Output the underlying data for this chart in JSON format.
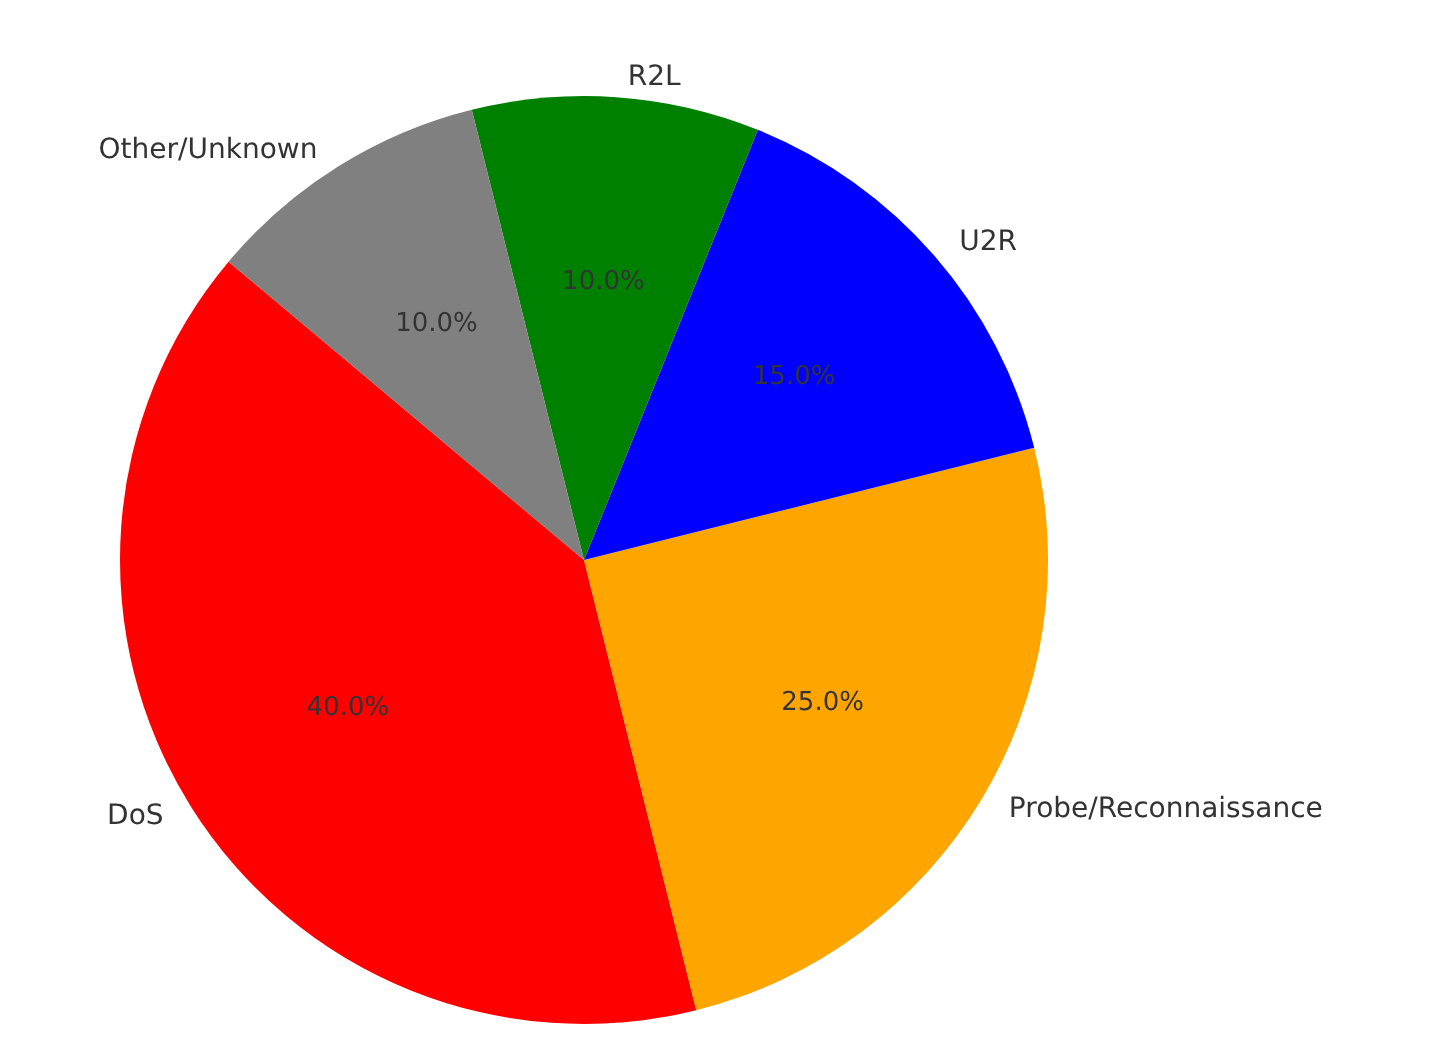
{
  "chart_data": {
    "type": "pie",
    "categories": [
      "DoS",
      "Probe/Reconnaissance",
      "U2R",
      "R2L",
      "Other/Unknown"
    ],
    "values": [
      40,
      25,
      15,
      10,
      10
    ],
    "colors": [
      "#ff0000",
      "#ffa500",
      "#0000ff",
      "#008000",
      "#808080"
    ],
    "value_labels": [
      "40.0%",
      "25.0%",
      "15.0%",
      "10.0%",
      "10.0%"
    ],
    "legend": false
  }
}
